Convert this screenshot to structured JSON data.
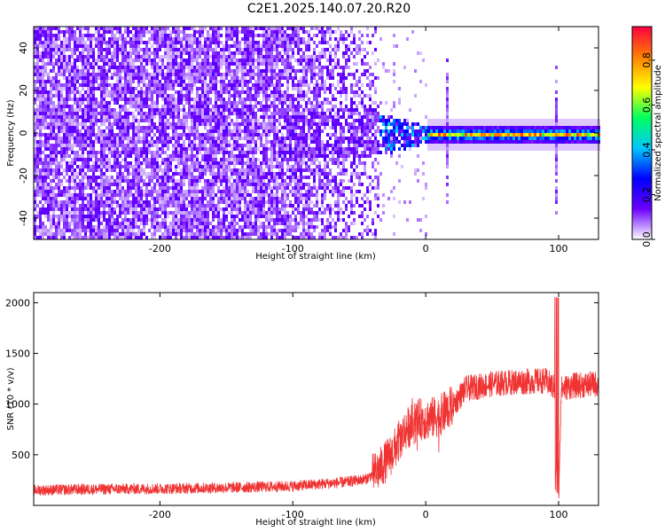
{
  "title": "C2E1.2025.140.07.20.R20",
  "chart_data": [
    {
      "type": "heatmap",
      "name": "spectrogram",
      "xlabel": "Height of straight line (km)",
      "ylabel": "Frequency (Hz)",
      "xlim": [
        -295,
        130
      ],
      "ylim": [
        -50,
        50
      ],
      "xticks": [
        -200,
        -100,
        0,
        100
      ],
      "yticks": [
        -40,
        -20,
        0,
        20,
        40
      ],
      "colorbar": {
        "label": "Normalized spectral amplitude",
        "range": [
          0,
          0.95
        ],
        "ticks": [
          0,
          0.2,
          0.4,
          0.6,
          0.8
        ],
        "tick_labels": [
          "0.0",
          "0.2",
          "0.4",
          "0.6",
          "0.8"
        ],
        "colormap": [
          "#ffffff",
          "#6a00ff",
          "#0000ff",
          "#00c8ff",
          "#00ff60",
          "#ffff00",
          "#ff8000",
          "#ff0040"
        ]
      },
      "features": {
        "broadband_noise_x": [
          -295,
          -35
        ],
        "transition_x": [
          -35,
          0
        ],
        "carrier_band_x": [
          0,
          130
        ],
        "carrier_frequency": 0,
        "spikes_x": [
          15,
          98
        ]
      }
    },
    {
      "type": "line",
      "name": "snr",
      "xlabel": "Height of straight line (km)",
      "ylabel": "SNR (10 * v/v)",
      "xlim": [
        -295,
        130
      ],
      "ylim": [
        0,
        2100
      ],
      "xticks": [
        -200,
        -100,
        0,
        100
      ],
      "yticks": [
        500,
        1000,
        1500,
        2000
      ],
      "color": "#f03333",
      "series": [
        {
          "values": [
            [
              -295,
              150
            ],
            [
              -250,
              160
            ],
            [
              -200,
              165
            ],
            [
              -150,
              175
            ],
            [
              -100,
              190
            ],
            [
              -80,
              210
            ],
            [
              -60,
              230
            ],
            [
              -45,
              260
            ],
            [
              -35,
              350
            ],
            [
              -25,
              520
            ],
            [
              -15,
              750
            ],
            [
              -5,
              850
            ],
            [
              0,
              850
            ],
            [
              10,
              880
            ],
            [
              20,
              980
            ],
            [
              30,
              1150
            ],
            [
              50,
              1200
            ],
            [
              70,
              1220
            ],
            [
              90,
              1230
            ],
            [
              98,
              1150
            ],
            [
              100,
              60
            ],
            [
              102,
              1150
            ],
            [
              110,
              1180
            ],
            [
              130,
              1200
            ]
          ]
        }
      ]
    }
  ]
}
